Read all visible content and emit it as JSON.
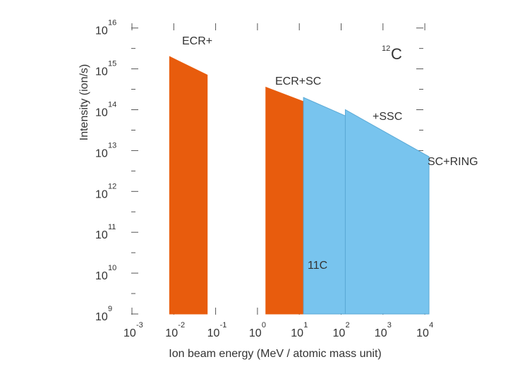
{
  "chart_data": {
    "type": "area",
    "xlabel": "Ion beam energy (MeV / atomic mass unit)",
    "ylabel": "Intensity (ion/s)",
    "x_scale": "log",
    "y_scale": "log",
    "xlim_exp": [
      -3,
      4
    ],
    "ylim_exp": [
      9,
      16
    ],
    "x_ticks": [
      {
        "base": "10",
        "exp": "-3"
      },
      {
        "base": "10",
        "exp": "-2"
      },
      {
        "base": "10",
        "exp": "-1"
      },
      {
        "base": "10",
        "exp": "0"
      },
      {
        "base": "10",
        "exp": "1"
      },
      {
        "base": "10",
        "exp": "2"
      },
      {
        "base": "10",
        "exp": "3"
      },
      {
        "base": "10",
        "exp": "4"
      }
    ],
    "y_ticks": [
      {
        "base": "10",
        "exp": "9"
      },
      {
        "base": "10",
        "exp": "10"
      },
      {
        "base": "10",
        "exp": "11"
      },
      {
        "base": "10",
        "exp": "12"
      },
      {
        "base": "10",
        "exp": "13"
      },
      {
        "base": "10",
        "exp": "14"
      },
      {
        "base": "10",
        "exp": "15"
      },
      {
        "base": "10",
        "exp": "16"
      }
    ],
    "ion_label": {
      "mass": "12",
      "symbol": "C"
    },
    "series": [
      {
        "name": "ECR+",
        "color": "#e85c0d",
        "log_x_range": [
          -2.1,
          -1.2
        ],
        "log_intensity": [
          15.3,
          14.85
        ]
      },
      {
        "name": "ECR+SC",
        "color": "#e85c0d",
        "log_x_range": [
          0.2,
          1.1
        ],
        "log_intensity": [
          14.55,
          14.2
        ]
      },
      {
        "name": "ECR+SC+SSC",
        "color": "#78c4ee",
        "log_x_range": [
          1.1,
          2.1
        ],
        "log_intensity": [
          14.3,
          13.85
        ]
      },
      {
        "name": "ECR+SC+SSC+RING",
        "color": "#78c4ee",
        "log_x_range": [
          2.1,
          4.1
        ],
        "log_intensity": [
          14.0,
          12.85
        ]
      }
    ],
    "annotations": [
      {
        "text": "ECR+"
      },
      {
        "text": "ECR+SC"
      },
      {
        "text": "+SSC"
      },
      {
        "text": "SC+RING"
      },
      {
        "text": "11C"
      }
    ]
  }
}
